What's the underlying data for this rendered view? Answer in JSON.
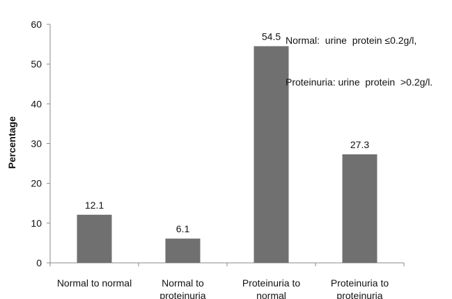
{
  "chart_data": {
    "type": "bar",
    "categories": [
      [
        "Normal to normal"
      ],
      [
        "Normal to",
        "proteinuria"
      ],
      [
        "Proteinuria to",
        "normal"
      ],
      [
        "Proteinuria to",
        "proteinuria"
      ]
    ],
    "values": [
      12.1,
      6.1,
      54.5,
      27.3
    ],
    "data_labels": [
      "12.1",
      "6.1",
      "54.5",
      "27.3"
    ],
    "ylabel": "Percentage",
    "ylim": [
      0,
      60
    ],
    "yticks": [
      0,
      10,
      20,
      30,
      40,
      50,
      60
    ],
    "grid": false,
    "bar_color": "#707070",
    "annotation": [
      "Normal:  urine  protein ≤0.2g/l,",
      "Proteinuria: urine  protein  >0.2g/l."
    ]
  }
}
